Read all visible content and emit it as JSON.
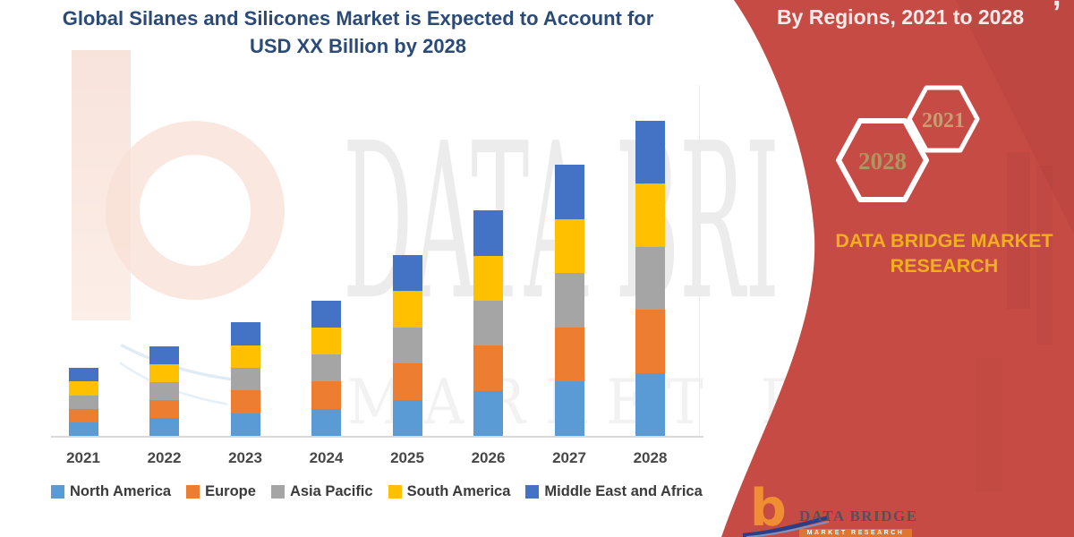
{
  "title": {
    "line1": "Global Silanes and Silicones Market is Expected to Account for",
    "line2": "USD XX Billion by 2028"
  },
  "right_panel": {
    "heading": "By Regions, 2021 to 2028",
    "top_fragment": ",",
    "hexagons": [
      {
        "label": "2028",
        "text_color": "#ae9660"
      },
      {
        "label": "2021",
        "text_color": "#c2a071"
      }
    ],
    "brand_line1": "DATA BRIDGE MARKET",
    "brand_line2": "RESEARCH",
    "logo": {
      "glyph": "b",
      "name": "DATA BRIDGE",
      "strip_text": "MARKET RESEARCH"
    },
    "colors": {
      "panel_red": "#c74b45",
      "brand_gold": "#f0af1e"
    }
  },
  "watermark": {
    "line1": "DATA BRI",
    "line2": "MARKET RESE"
  },
  "chart_data": {
    "type": "bar",
    "stacked": true,
    "title": "Global Silanes and Silicones Market is Expected to Account for USD XX Billion by 2028",
    "categories": [
      "2021",
      "2022",
      "2023",
      "2024",
      "2025",
      "2026",
      "2027",
      "2028"
    ],
    "series": [
      {
        "name": "North America",
        "color": "#5B9BD5",
        "values": [
          4.3,
          5.7,
          7.2,
          8.6,
          11.5,
          14.3,
          17.2,
          20
        ]
      },
      {
        "name": "Europe",
        "color": "#ED7D31",
        "values": [
          4.3,
          5.7,
          7.2,
          8.6,
          11.5,
          14.3,
          17.2,
          20
        ]
      },
      {
        "name": "Asia Pacific",
        "color": "#A5A5A5",
        "values": [
          4.3,
          5.7,
          7.2,
          8.6,
          11.5,
          14.3,
          17.2,
          20
        ]
      },
      {
        "name": "South America",
        "color": "#FFC000",
        "values": [
          4.3,
          5.7,
          7.2,
          8.6,
          11.5,
          14.3,
          17.2,
          20
        ]
      },
      {
        "name": "Middle East and Africa",
        "color": "#4472C4",
        "values": [
          4.3,
          5.7,
          7.2,
          8.6,
          11.5,
          14.3,
          17.2,
          20
        ]
      }
    ],
    "value_axis_visible": false,
    "units": "USD Billion (shown as XX; values estimated from bar heights, relative scale 2028 total = 100)",
    "legend_position": "bottom",
    "xlabel": "",
    "ylabel": ""
  }
}
